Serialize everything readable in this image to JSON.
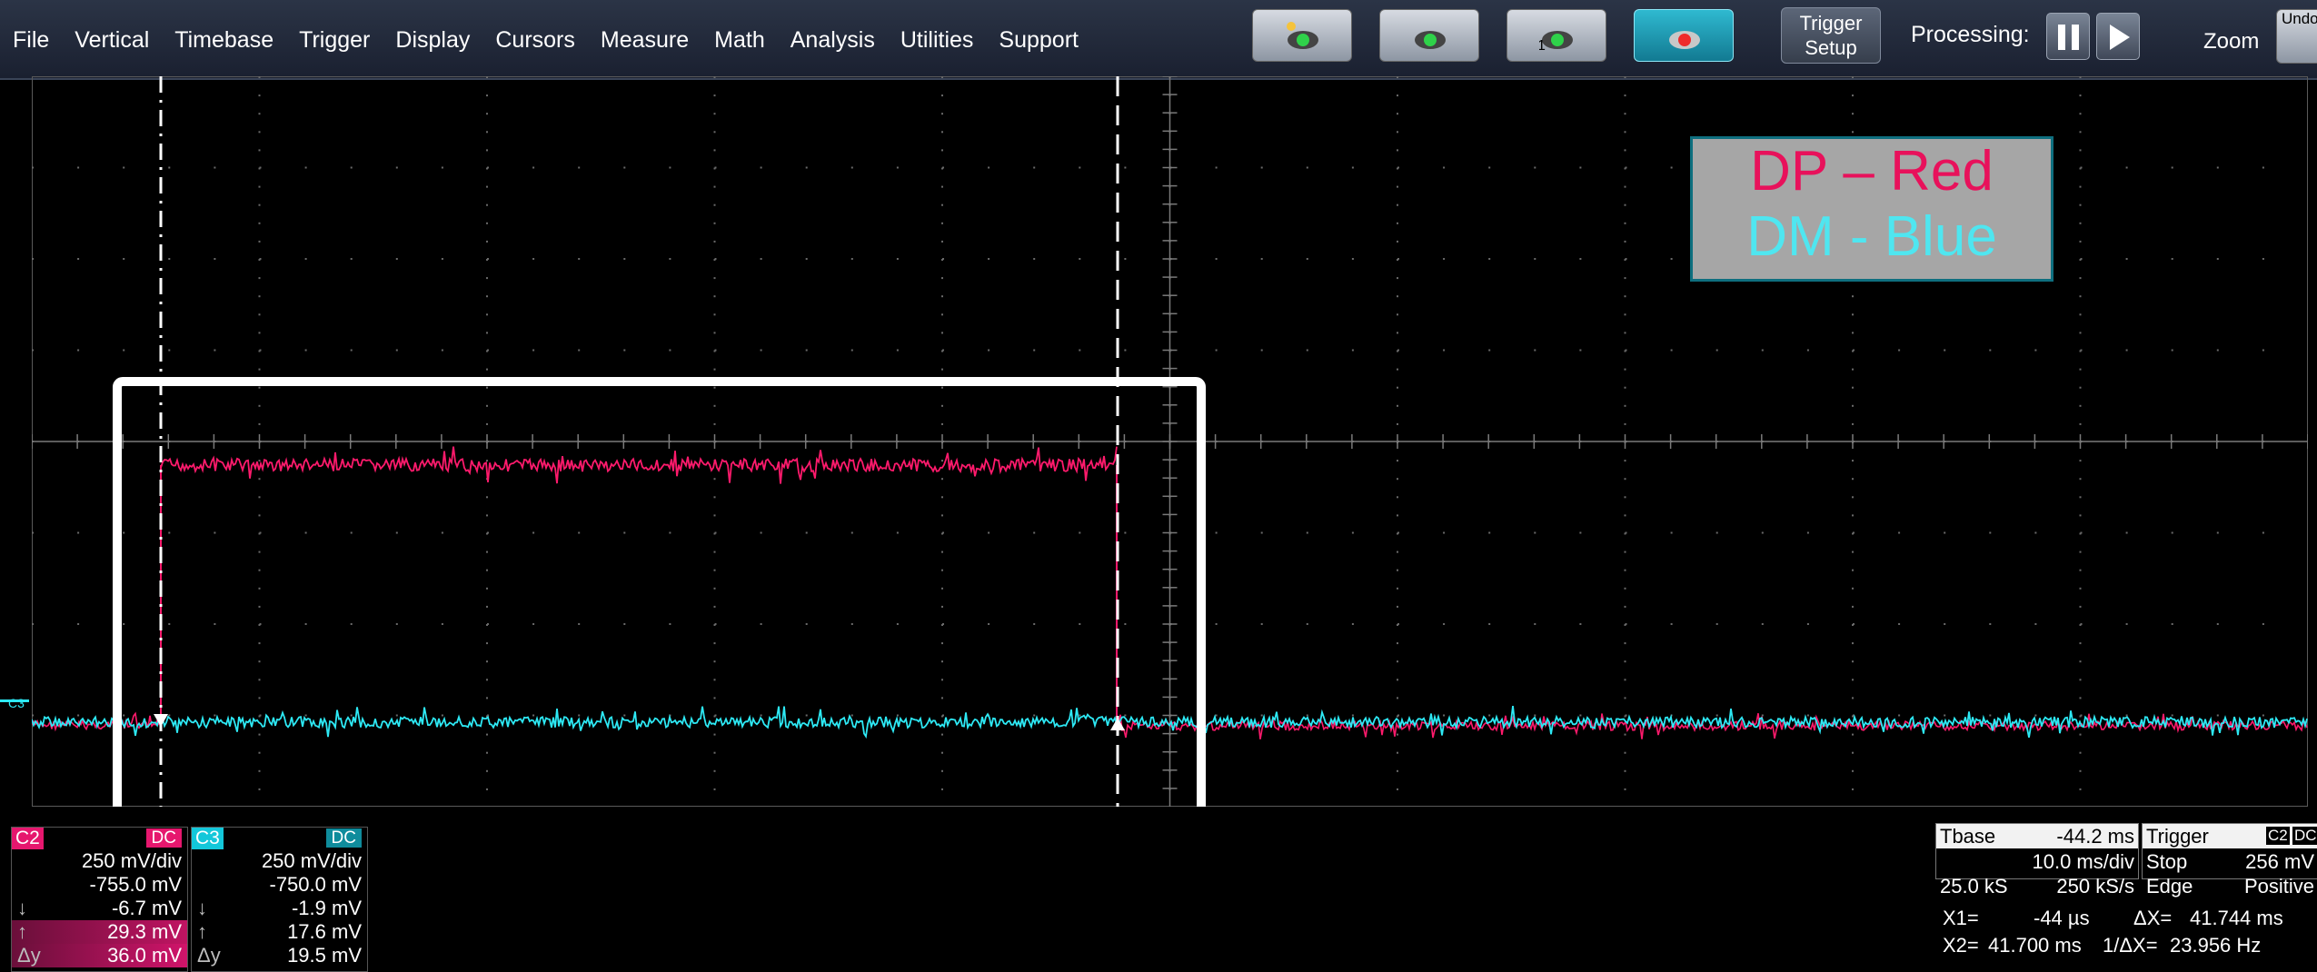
{
  "menu": [
    "File",
    "Vertical",
    "Timebase",
    "Trigger",
    "Display",
    "Cursors",
    "Measure",
    "Math",
    "Analysis",
    "Utilities",
    "Support"
  ],
  "toolbar": {
    "trigger_setup_line1": "Trigger",
    "trigger_setup_line2": "Setup",
    "processing_label": "Processing:",
    "zoom_label": "Zoom",
    "undo_label": "Undo",
    "mode_buttons": [
      "auto-trigger-mode",
      "normal-trigger-mode",
      "single-trigger-mode",
      "stop-trigger-mode"
    ],
    "trigger_mode_single_digit": "1"
  },
  "legend": {
    "line1": "DP – Red",
    "line2": "DM - Blue",
    "line1_color": "#e8115b",
    "line2_color": "#4fe6f0",
    "background": "#a6a6a6"
  },
  "trace_colors": {
    "c2": "#ff1a6c",
    "c3": "#2de9f5"
  },
  "grid_marker_c3": "C3",
  "channels": [
    {
      "tag": "C2",
      "coupling": "DC",
      "color": "#e6176e",
      "scale": "250 mV/div",
      "offset": "-755.0 mV",
      "down_label": "↓",
      "down": "-6.7 mV",
      "up_label": "↑",
      "up": "29.3 mV",
      "delta_label": "Δy",
      "delta": "36.0 mV"
    },
    {
      "tag": "C3",
      "coupling": "DC",
      "color": "#13c7da",
      "scale": "250 mV/div",
      "offset": "-750.0 mV",
      "down_label": "↓",
      "down": "-1.9 mV",
      "up_label": "↑",
      "up": "17.6 mV",
      "delta_label": "Δy",
      "delta": "19.5 mV"
    }
  ],
  "timebase": {
    "label": "Tbase",
    "delay": "-44.2 ms",
    "scale": "10.0 ms/div",
    "samples": "25.0 kS",
    "rate": "250 kS/s"
  },
  "trigger": {
    "label": "Trigger",
    "source": "C2",
    "coupling": "DC",
    "mode": "Stop",
    "level": "256 mV",
    "type": "Edge",
    "slope": "Positive"
  },
  "cursors": {
    "x1_label": "X1=",
    "x1": "-44 µs",
    "dx_label": "ΔX=",
    "dx": "41.744 ms",
    "x2_label": "X2=",
    "x2": "41.700 ms",
    "inv_label": "1/ΔX=",
    "inv": "23.956 Hz"
  }
}
